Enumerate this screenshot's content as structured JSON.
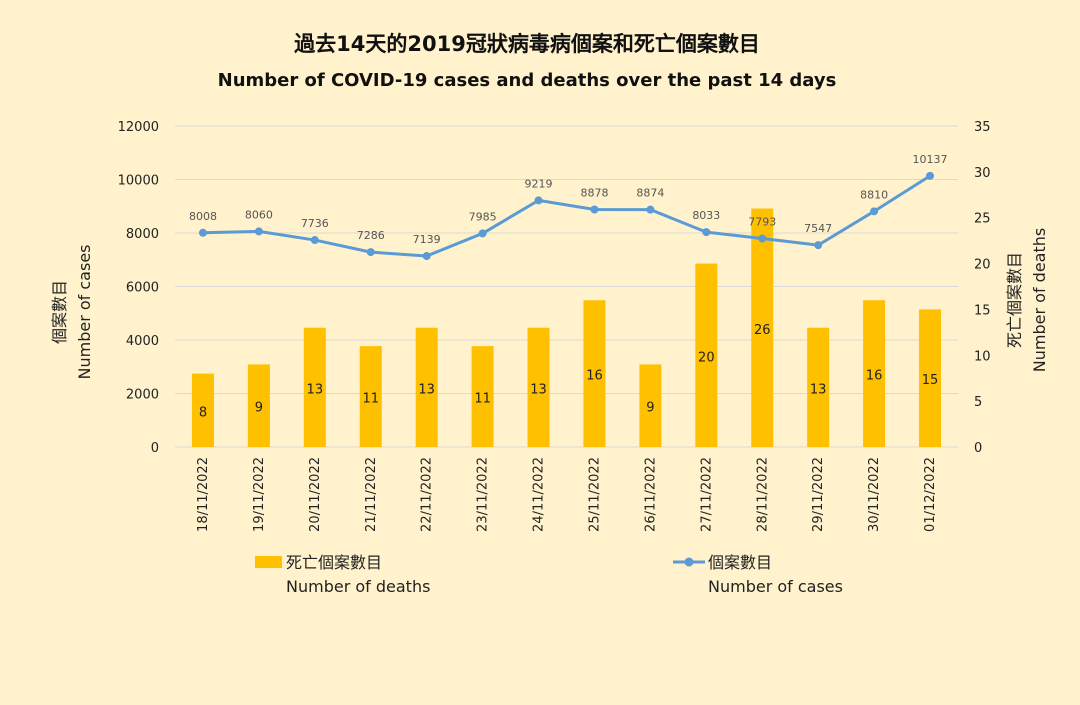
{
  "chart_data": {
    "type": "bar+line",
    "title_zh": "過去14天的2019冠狀病毒病個案和死亡個案數目",
    "title_en": "Number of COVID-19 cases and deaths over the past 14 days",
    "categories": [
      "18/11/2022",
      "19/11/2022",
      "20/11/2022",
      "21/11/2022",
      "22/11/2022",
      "23/11/2022",
      "24/11/2022",
      "25/11/2022",
      "26/11/2022",
      "27/11/2022",
      "28/11/2022",
      "29/11/2022",
      "30/11/2022",
      "01/12/2022"
    ],
    "left_axis": {
      "label_zh": "個案數目",
      "label_en": "Number of cases",
      "ylim": [
        0,
        12000
      ],
      "ticks": [
        0,
        2000,
        4000,
        6000,
        8000,
        10000,
        12000
      ]
    },
    "right_axis": {
      "label_zh": "死亡個案數目",
      "label_en": "Number of deaths",
      "ylim": [
        0,
        35
      ],
      "ticks": [
        0,
        5,
        10,
        15,
        20,
        25,
        30,
        35
      ]
    },
    "series": [
      {
        "name": "死亡個案數目",
        "name_en": "Number of deaths",
        "kind": "bar",
        "axis": "right",
        "color": "#FFC000",
        "values": [
          8,
          9,
          13,
          11,
          13,
          11,
          13,
          16,
          9,
          20,
          26,
          13,
          16,
          15
        ]
      },
      {
        "name": "個案數目",
        "name_en": "Number of cases",
        "kind": "line",
        "axis": "left",
        "color": "#5B9BD5",
        "values": [
          8008,
          8060,
          7736,
          7286,
          7139,
          7985,
          9219,
          8878,
          8874,
          8033,
          7793,
          7547,
          8810,
          10137
        ]
      }
    ],
    "grid": true,
    "legend": "bottom"
  }
}
